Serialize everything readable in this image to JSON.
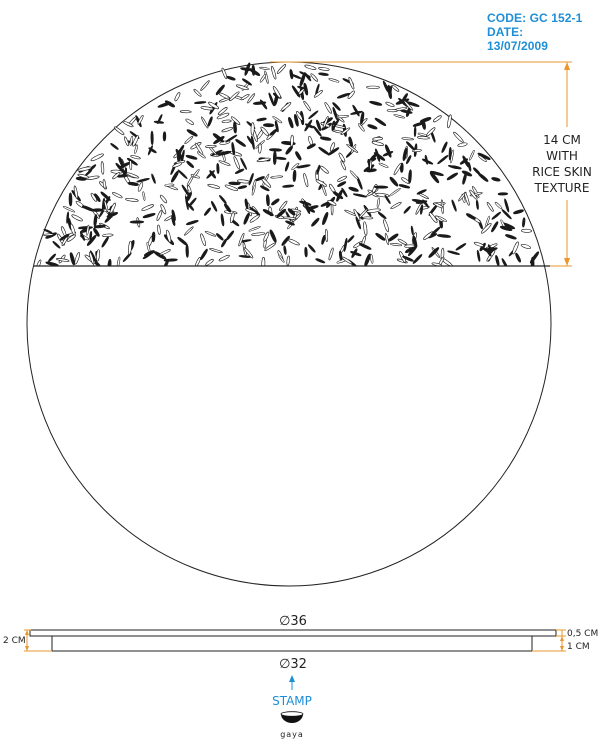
{
  "header": {
    "code": "CODE: GC 152-1",
    "date": "DATE: 13/07/2009"
  },
  "colors": {
    "accent_blue": "#1e8fd6",
    "dimension_orange": "#e8962e",
    "line": "#222222"
  },
  "top_view": {
    "texture_note": [
      "14 CM",
      "WITH",
      "RICE SKIN",
      "TEXTURE"
    ]
  },
  "side_view": {
    "top_diameter": "∅36",
    "bottom_diameter": "∅32",
    "total_height": "2 CM",
    "rim_height": "0,5 CM",
    "base_height": "1 CM"
  },
  "stamp": {
    "label": "STAMP",
    "brand": "gaya"
  }
}
